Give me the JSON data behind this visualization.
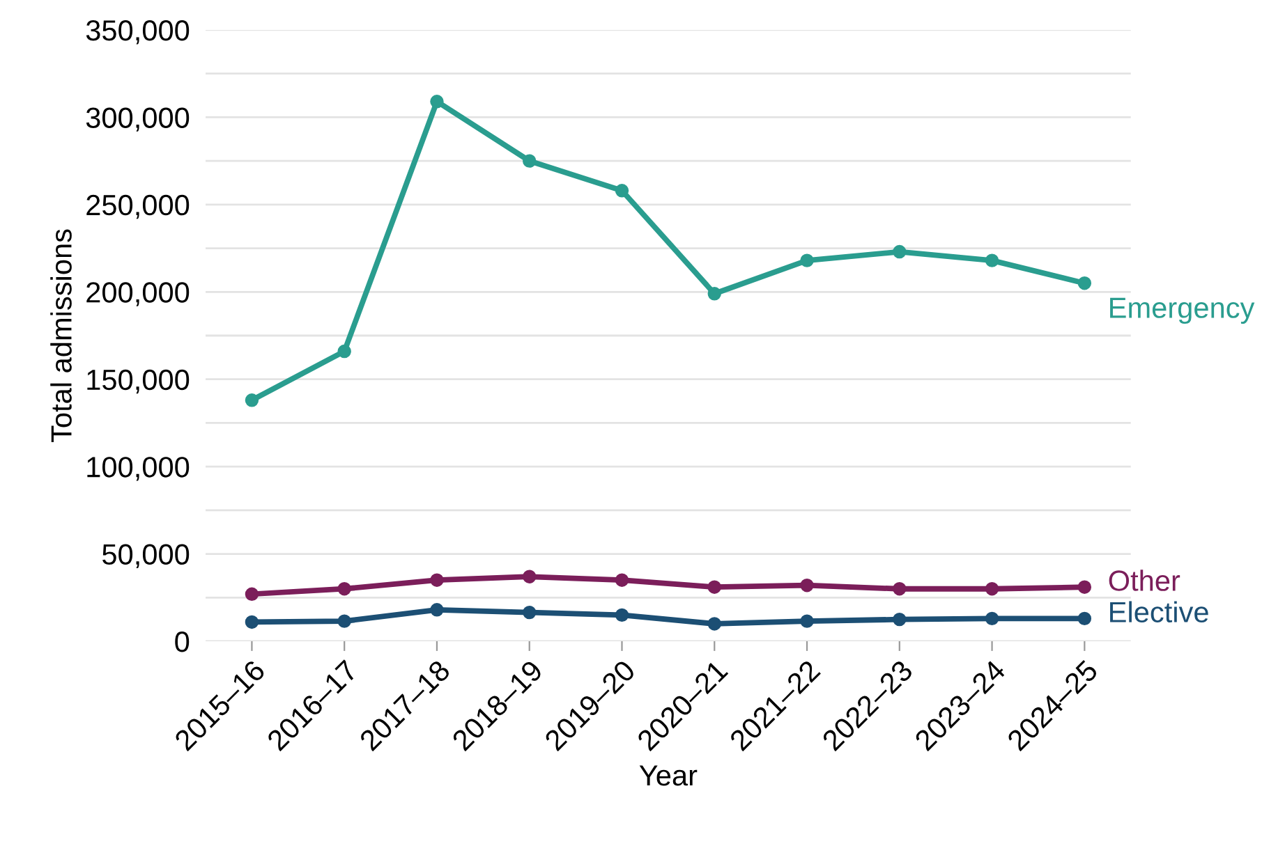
{
  "chart_data": {
    "type": "line",
    "xlabel": "Year",
    "ylabel": "Total admissions",
    "categories": [
      "2015–16",
      "2016–17",
      "2017–18",
      "2018–19",
      "2019–20",
      "2020–21",
      "2021–22",
      "2022–23",
      "2023–24",
      "2024–25"
    ],
    "series": [
      {
        "name": "Emergency",
        "color": "#2a9d8f",
        "values": [
          138000,
          166000,
          309000,
          275000,
          258000,
          199000,
          218000,
          223000,
          218000,
          205000
        ]
      },
      {
        "name": "Other",
        "color": "#7b1e5a",
        "values": [
          27000,
          30000,
          35000,
          37000,
          35000,
          31000,
          32000,
          30000,
          30000,
          31000
        ]
      },
      {
        "name": "Elective",
        "color": "#1c4f74",
        "values": [
          11000,
          11500,
          18000,
          16500,
          15000,
          10000,
          11500,
          12500,
          13000,
          13000
        ]
      }
    ],
    "ylim": [
      0,
      350000
    ],
    "yticks": [
      {
        "value": 0,
        "label": "0"
      },
      {
        "value": 25000,
        "label": null
      },
      {
        "value": 50000,
        "label": "50,000"
      },
      {
        "value": 75000,
        "label": null
      },
      {
        "value": 100000,
        "label": "100,000"
      },
      {
        "value": 125000,
        "label": null
      },
      {
        "value": 150000,
        "label": "150,000"
      },
      {
        "value": 175000,
        "label": null
      },
      {
        "value": 200000,
        "label": "200,000"
      },
      {
        "value": 225000,
        "label": null
      },
      {
        "value": 250000,
        "label": "250,000"
      },
      {
        "value": 275000,
        "label": null
      },
      {
        "value": 300000,
        "label": "300,000"
      },
      {
        "value": 325000,
        "label": null
      },
      {
        "value": 350000,
        "label": "350,000"
      }
    ],
    "grid": "y",
    "legend": false,
    "marker": "circle",
    "line_style": "solid"
  }
}
